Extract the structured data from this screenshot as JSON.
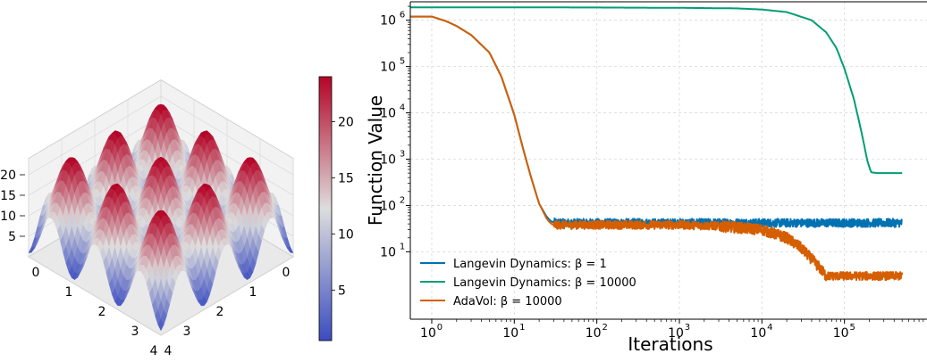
{
  "chart_data": [
    {
      "type": "surface3d",
      "colormap": "coolwarm",
      "x_ticks": [
        "0",
        "1",
        "2",
        "3",
        "4"
      ],
      "y_ticks": [
        "0",
        "1",
        "2",
        "3",
        "4"
      ],
      "z_ticks": [
        "5",
        "10",
        "15",
        "20"
      ],
      "xlim": [
        0,
        4
      ],
      "ylim": [
        0,
        4
      ],
      "zlim": [
        0,
        24
      ],
      "colorbar": {
        "ticks": [
          "5",
          "10",
          "15",
          "20"
        ],
        "tick_values": [
          5,
          10,
          15,
          20
        ],
        "range": [
          0.5,
          24
        ],
        "low_color": "#3b4cc0",
        "mid_color": "#dddddd",
        "high_color": "#b40426"
      },
      "grid": true
    },
    {
      "type": "line",
      "xlabel": "Iterations",
      "ylabel": "Function Value",
      "xscale": "log",
      "yscale": "log",
      "xlim": [
        0.55,
        1000000
      ],
      "ylim": [
        0.35,
        2500000
      ],
      "x_ticks": [
        1,
        10,
        100,
        1000,
        10000,
        100000
      ],
      "y_ticks": [
        10,
        100,
        1000,
        10000,
        100000,
        1000000
      ],
      "x_tick_labels": [
        {
          "base": "10",
          "exp": "0"
        },
        {
          "base": "10",
          "exp": "1"
        },
        {
          "base": "10",
          "exp": "2"
        },
        {
          "base": "10",
          "exp": "3"
        },
        {
          "base": "10",
          "exp": "4"
        },
        {
          "base": "10",
          "exp": "5"
        }
      ],
      "y_tick_labels": [
        {
          "base": "10",
          "exp": "1"
        },
        {
          "base": "10",
          "exp": "2"
        },
        {
          "base": "10",
          "exp": "3"
        },
        {
          "base": "10",
          "exp": "4"
        },
        {
          "base": "10",
          "exp": "5"
        },
        {
          "base": "10",
          "exp": "6"
        }
      ],
      "grid": true,
      "legend_position": "lower-left",
      "series": [
        {
          "name": "Langevin Dynamics: β = 1",
          "color": "#0072b2",
          "noisy_from": 30,
          "noise_band": [
            33,
            52
          ],
          "x": [
            0.55,
            1,
            1.5,
            2,
            3,
            5,
            7,
            10,
            13,
            16,
            20,
            25,
            28,
            30,
            40,
            100,
            1000,
            10000,
            100000,
            500000
          ],
          "y": [
            1200000,
            1200000,
            950000,
            750000,
            480000,
            200000,
            60000,
            9000,
            1500,
            400,
            110,
            55,
            45,
            43,
            42,
            42,
            42,
            42,
            42,
            42
          ]
        },
        {
          "name": "Langevin Dynamics: β = 10000",
          "color": "#009e73",
          "x": [
            0.55,
            10,
            100,
            1000,
            5000,
            10000,
            20000,
            40000,
            60000,
            80000,
            100000,
            130000,
            160000,
            190000,
            210000,
            250000,
            500000
          ],
          "y": [
            1900000,
            1900000,
            1880000,
            1850000,
            1800000,
            1700000,
            1500000,
            1000000,
            550000,
            250000,
            90000,
            20000,
            4000,
            900,
            520,
            500,
            500
          ]
        },
        {
          "name": "AdaVol: β = 10000",
          "color": "#d55e00",
          "noisy_from": 30,
          "noise_band": [
            2.6,
            3.6
          ],
          "x": [
            0.55,
            1,
            1.5,
            2,
            3,
            5,
            7,
            10,
            13,
            16,
            20,
            25,
            28,
            30,
            100,
            1000,
            3000,
            10000,
            20000,
            30000,
            40000,
            50000,
            60000,
            500000
          ],
          "y": [
            1200000,
            1200000,
            950000,
            750000,
            480000,
            200000,
            60000,
            9000,
            1500,
            400,
            110,
            50,
            40,
            38,
            38,
            38,
            36,
            30,
            20,
            12,
            7,
            4.5,
            3,
            3
          ]
        }
      ]
    }
  ]
}
